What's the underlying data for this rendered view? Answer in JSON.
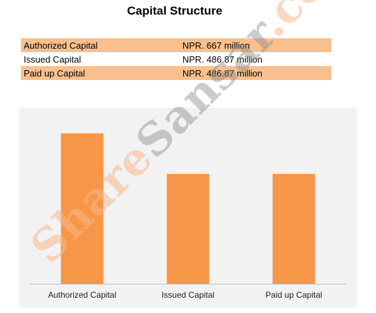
{
  "title": "Capital  Structure",
  "table": {
    "rows": [
      {
        "label": "Authorized Capital",
        "value": "NPR. 667  million",
        "shaded": true
      },
      {
        "label": "Issued Capital",
        "value": "NPR. 486.87  million",
        "shaded": false
      },
      {
        "label": "Paid up Capital",
        "value": "NPR. 486.87  million",
        "shaded": true
      }
    ]
  },
  "colors": {
    "bar": "#f79646",
    "band": "#f9c08d",
    "chart_bg": "#f2f2f2",
    "axis": "#bfbfbf"
  },
  "watermark": {
    "part1": "Share",
    "part2": "Sansar",
    "part3": ".com"
  },
  "chart_data": {
    "type": "bar",
    "categories": [
      "Authorized Capital",
      "Issued Capital",
      "Paid up Capital"
    ],
    "values": [
      667,
      486.87,
      486.87
    ],
    "title": "",
    "xlabel": "",
    "ylabel": "",
    "ylim": [
      0,
      700
    ],
    "grid": false,
    "legend": "none"
  }
}
